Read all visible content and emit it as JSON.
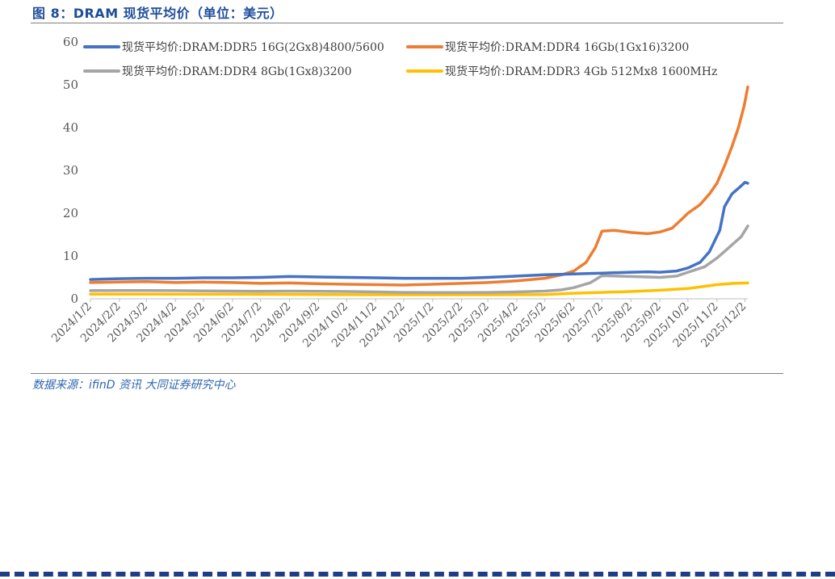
{
  "figure": {
    "title": "图 8：DRAM 现货平均价（单位：美元）",
    "source": "数据来源：ifinD 资讯 大同证券研究中心"
  },
  "chart_data": {
    "type": "line",
    "title": "",
    "xlabel": "",
    "ylabel": "",
    "ylim": [
      0,
      60
    ],
    "yticks": [
      "0",
      "10",
      "20",
      "30",
      "40",
      "50",
      "60"
    ],
    "grid": false,
    "legend_position": "top",
    "x_range": [
      "2024-01-02",
      "2025-12-05"
    ],
    "categories": [
      "2024/1/2",
      "2024/2/2",
      "2024/3/2",
      "2024/4/2",
      "2024/5/2",
      "2024/6/2",
      "2024/7/2",
      "2024/8/2",
      "2024/9/2",
      "2024/10/2",
      "2024/11/2",
      "2024/12/2",
      "2025/1/2",
      "2025/2/2",
      "2025/3/2",
      "2025/4/2",
      "2025/5/2",
      "2025/6/2",
      "2025/7/2",
      "2025/8/2",
      "2025/9/2",
      "2025/10/2",
      "2025/11/2",
      "2025/12/2"
    ],
    "series": [
      {
        "name": "现货平均价:DRAM:DDR5 16G(2Gx8)4800/5600",
        "color": "#4472c4",
        "points": [
          [
            "2024-01-02",
            4.5
          ],
          [
            "2024-02-02",
            4.7
          ],
          [
            "2024-03-02",
            4.8
          ],
          [
            "2024-04-02",
            4.8
          ],
          [
            "2024-05-02",
            4.9
          ],
          [
            "2024-06-02",
            4.9
          ],
          [
            "2024-07-02",
            5.0
          ],
          [
            "2024-08-02",
            5.2
          ],
          [
            "2024-09-02",
            5.1
          ],
          [
            "2024-10-02",
            5.0
          ],
          [
            "2024-11-02",
            4.9
          ],
          [
            "2024-12-02",
            4.8
          ],
          [
            "2025-01-02",
            4.8
          ],
          [
            "2025-02-02",
            4.8
          ],
          [
            "2025-03-02",
            5.0
          ],
          [
            "2025-04-02",
            5.3
          ],
          [
            "2025-05-02",
            5.6
          ],
          [
            "2025-06-02",
            5.8
          ],
          [
            "2025-07-02",
            6.0
          ],
          [
            "2025-08-02",
            6.2
          ],
          [
            "2025-08-20",
            6.3
          ],
          [
            "2025-09-02",
            6.2
          ],
          [
            "2025-09-20",
            6.5
          ],
          [
            "2025-10-02",
            7.2
          ],
          [
            "2025-10-15",
            8.5
          ],
          [
            "2025-10-25",
            11.0
          ],
          [
            "2025-11-05",
            16.0
          ],
          [
            "2025-11-10",
            21.5
          ],
          [
            "2025-11-18",
            24.5
          ],
          [
            "2025-11-26",
            26.0
          ],
          [
            "2025-12-02",
            27.2
          ],
          [
            "2025-12-05",
            27.0
          ]
        ]
      },
      {
        "name": "现货平均价:DRAM:DDR4 16Gb(1Gx16)3200",
        "color": "#ed7d31",
        "points": [
          [
            "2024-01-02",
            3.8
          ],
          [
            "2024-02-02",
            3.9
          ],
          [
            "2024-03-02",
            4.0
          ],
          [
            "2024-04-02",
            3.8
          ],
          [
            "2024-05-02",
            3.9
          ],
          [
            "2024-06-02",
            3.8
          ],
          [
            "2024-07-02",
            3.6
          ],
          [
            "2024-08-02",
            3.7
          ],
          [
            "2024-09-02",
            3.5
          ],
          [
            "2024-10-02",
            3.4
          ],
          [
            "2024-11-02",
            3.3
          ],
          [
            "2024-12-02",
            3.2
          ],
          [
            "2025-01-02",
            3.4
          ],
          [
            "2025-02-02",
            3.6
          ],
          [
            "2025-03-02",
            3.8
          ],
          [
            "2025-04-02",
            4.2
          ],
          [
            "2025-05-02",
            4.8
          ],
          [
            "2025-05-20",
            5.6
          ],
          [
            "2025-06-02",
            6.5
          ],
          [
            "2025-06-15",
            8.5
          ],
          [
            "2025-06-25",
            12.0
          ],
          [
            "2025-07-02",
            15.8
          ],
          [
            "2025-07-15",
            16.0
          ],
          [
            "2025-08-02",
            15.5
          ],
          [
            "2025-08-20",
            15.2
          ],
          [
            "2025-09-02",
            15.6
          ],
          [
            "2025-09-15",
            16.5
          ],
          [
            "2025-09-25",
            18.5
          ],
          [
            "2025-10-02",
            20.0
          ],
          [
            "2025-10-15",
            22.0
          ],
          [
            "2025-10-25",
            24.5
          ],
          [
            "2025-11-02",
            27.0
          ],
          [
            "2025-11-10",
            31.0
          ],
          [
            "2025-11-18",
            35.5
          ],
          [
            "2025-11-25",
            40.0
          ],
          [
            "2025-12-01",
            45.0
          ],
          [
            "2025-12-05",
            49.5
          ]
        ]
      },
      {
        "name": "现货平均价:DRAM:DDR4 8Gb(1Gx8)3200",
        "color": "#a5a5a5",
        "points": [
          [
            "2024-01-02",
            1.9
          ],
          [
            "2024-02-02",
            1.95
          ],
          [
            "2024-03-02",
            1.95
          ],
          [
            "2024-04-02",
            1.9
          ],
          [
            "2024-05-02",
            1.85
          ],
          [
            "2024-06-02",
            1.8
          ],
          [
            "2024-07-02",
            1.75
          ],
          [
            "2024-08-02",
            1.8
          ],
          [
            "2024-09-02",
            1.75
          ],
          [
            "2024-10-02",
            1.7
          ],
          [
            "2024-11-02",
            1.6
          ],
          [
            "2024-12-02",
            1.5
          ],
          [
            "2025-01-02",
            1.45
          ],
          [
            "2025-02-02",
            1.45
          ],
          [
            "2025-03-02",
            1.5
          ],
          [
            "2025-04-02",
            1.6
          ],
          [
            "2025-05-02",
            1.8
          ],
          [
            "2025-05-20",
            2.1
          ],
          [
            "2025-06-02",
            2.6
          ],
          [
            "2025-06-20",
            3.8
          ],
          [
            "2025-07-02",
            5.4
          ],
          [
            "2025-08-02",
            5.2
          ],
          [
            "2025-08-20",
            5.1
          ],
          [
            "2025-09-02",
            5.0
          ],
          [
            "2025-09-20",
            5.3
          ],
          [
            "2025-10-02",
            6.2
          ],
          [
            "2025-10-20",
            7.5
          ],
          [
            "2025-11-02",
            9.5
          ],
          [
            "2025-11-15",
            12.0
          ],
          [
            "2025-11-28",
            14.5
          ],
          [
            "2025-12-05",
            17.0
          ]
        ]
      },
      {
        "name": "现货平均价:DRAM:DDR3 4Gb 512Mx8 1600MHz",
        "color": "#ffc000",
        "points": [
          [
            "2024-01-02",
            1.1
          ],
          [
            "2024-03-02",
            1.1
          ],
          [
            "2024-06-02",
            1.05
          ],
          [
            "2024-09-02",
            1.0
          ],
          [
            "2024-12-02",
            0.95
          ],
          [
            "2025-03-02",
            0.95
          ],
          [
            "2025-05-02",
            1.0
          ],
          [
            "2025-06-02",
            1.3
          ],
          [
            "2025-07-02",
            1.5
          ],
          [
            "2025-08-02",
            1.7
          ],
          [
            "2025-09-02",
            2.0
          ],
          [
            "2025-10-02",
            2.4
          ],
          [
            "2025-11-02",
            3.3
          ],
          [
            "2025-11-20",
            3.6
          ],
          [
            "2025-12-05",
            3.7
          ]
        ]
      }
    ]
  }
}
